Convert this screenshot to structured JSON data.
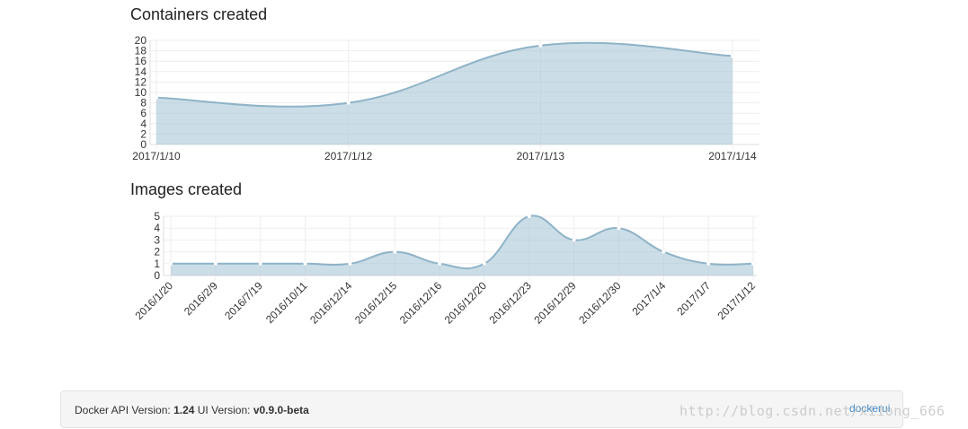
{
  "chart_data": [
    {
      "type": "area",
      "title": "Containers created",
      "categories": [
        "2017/1/10",
        "2017/1/12",
        "2017/1/13",
        "2017/1/14"
      ],
      "values": [
        9,
        8,
        19,
        17
      ],
      "ylim": [
        0,
        20
      ],
      "yticks": [
        "0",
        "2",
        "4",
        "6",
        "8",
        "10",
        "12",
        "14",
        "16",
        "18",
        "20"
      ],
      "grid": true,
      "colors": {
        "fill": "#97bbcd",
        "stroke": "#8eb3c8"
      }
    },
    {
      "type": "area",
      "title": "Images created",
      "categories": [
        "2016/1/20",
        "2016/2/9",
        "2016/7/19",
        "2016/10/11",
        "2016/12/14",
        "2016/12/15",
        "2016/12/16",
        "2016/12/20",
        "2016/12/23",
        "2016/12/29",
        "2016/12/30",
        "2017/1/4",
        "2017/1/7",
        "2017/1/12"
      ],
      "values": [
        1,
        1,
        1,
        1,
        1,
        2,
        1,
        1,
        5,
        3,
        4,
        2,
        1,
        1
      ],
      "ylim": [
        0,
        5
      ],
      "yticks": [
        "0",
        "1",
        "2",
        "3",
        "4",
        "5"
      ],
      "grid": true,
      "colors": {
        "fill": "#97bbcd",
        "stroke": "#8eb3c8"
      }
    }
  ],
  "footer": {
    "api_label": "Docker API Version:",
    "api_version": "1.24",
    "ui_label": "UI Version:",
    "ui_version": "v0.9.0-beta",
    "link_label": "dockerui"
  },
  "watermark": "http://blog.csdn.net/xiiong_666"
}
